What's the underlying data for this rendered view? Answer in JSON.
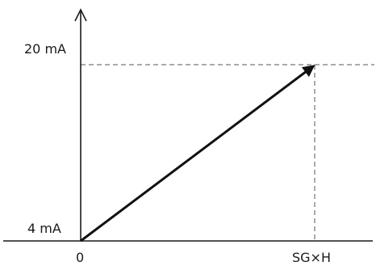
{
  "diagram": {
    "y_top_label": "20 mA",
    "y_bottom_label": "4 mA",
    "x_origin_label": "0",
    "x_end_label": "SG×H"
  },
  "colors": {
    "line": "#111111",
    "guide": "#555555"
  }
}
